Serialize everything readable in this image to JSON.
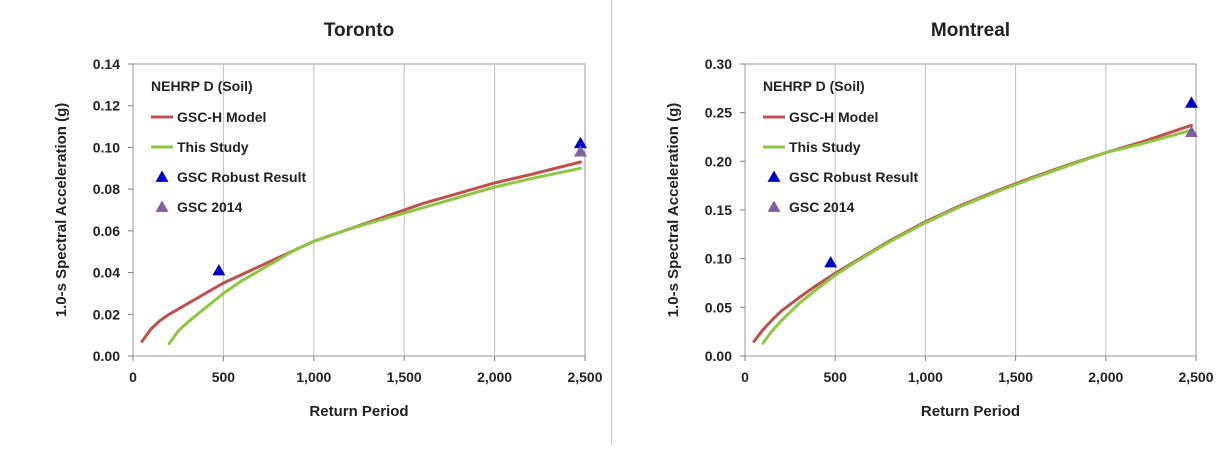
{
  "chart_data": [
    {
      "type": "line",
      "title": "Toronto",
      "xlabel": "Return Period",
      "ylabel": "1.0-s Spectral Acceleration (g)",
      "xlim": [
        0,
        2500
      ],
      "ylim": [
        0,
        0.14
      ],
      "x_ticks": [
        "0",
        "500",
        "1,000",
        "1,500",
        "2,000",
        "2,500"
      ],
      "y_ticks": [
        "0.00",
        "0.02",
        "0.04",
        "0.06",
        "0.08",
        "0.10",
        "0.12",
        "0.14"
      ],
      "grid": "vertical",
      "legend_position": "top-left",
      "legend_title": "NEHRP D (Soil)",
      "series": [
        {
          "name": "GSC-H Model",
          "kind": "line",
          "color": "#c0504d",
          "x": [
            50,
            100,
            150,
            200,
            300,
            400,
            500,
            600,
            700,
            800,
            900,
            1000,
            1200,
            1400,
            1600,
            1800,
            2000,
            2200,
            2475
          ],
          "y": [
            0.007,
            0.013,
            0.017,
            0.02,
            0.025,
            0.03,
            0.035,
            0.039,
            0.043,
            0.047,
            0.051,
            0.055,
            0.061,
            0.067,
            0.073,
            0.078,
            0.083,
            0.087,
            0.093
          ]
        },
        {
          "name": "This Study",
          "kind": "line",
          "color": "#8dc63f",
          "x": [
            200,
            250,
            300,
            400,
            500,
            600,
            700,
            800,
            900,
            1000,
            1200,
            1400,
            1600,
            1800,
            2000,
            2200,
            2475
          ],
          "y": [
            0.006,
            0.012,
            0.016,
            0.023,
            0.03,
            0.036,
            0.041,
            0.046,
            0.051,
            0.055,
            0.061,
            0.066,
            0.071,
            0.076,
            0.081,
            0.085,
            0.09
          ]
        },
        {
          "name": "GSC Robust Result",
          "kind": "marker",
          "color": "#0000cc",
          "x": [
            475,
            2475
          ],
          "y": [
            0.041,
            0.102
          ]
        },
        {
          "name": "GSC 2014",
          "kind": "marker",
          "color": "#7f5fa6",
          "x": [
            2475
          ],
          "y": [
            0.098
          ]
        }
      ]
    },
    {
      "type": "line",
      "title": "Montreal",
      "xlabel": "Return Period",
      "ylabel": "1.0-s Spectral Acceleration (g)",
      "xlim": [
        0,
        2500
      ],
      "ylim": [
        0,
        0.3
      ],
      "x_ticks": [
        "0",
        "500",
        "1,000",
        "1,500",
        "2,000",
        "2,500"
      ],
      "y_ticks": [
        "0.00",
        "0.05",
        "0.10",
        "0.15",
        "0.20",
        "0.25",
        "0.30"
      ],
      "grid": "vertical",
      "legend_position": "top-left",
      "legend_title": "NEHRP D (Soil)",
      "series": [
        {
          "name": "GSC-H Model",
          "kind": "line",
          "color": "#c0504d",
          "x": [
            50,
            100,
            150,
            200,
            300,
            400,
            500,
            600,
            800,
            1000,
            1200,
            1400,
            1600,
            1800,
            2000,
            2200,
            2475
          ],
          "y": [
            0.015,
            0.027,
            0.037,
            0.046,
            0.06,
            0.073,
            0.085,
            0.096,
            0.118,
            0.138,
            0.155,
            0.17,
            0.184,
            0.197,
            0.209,
            0.22,
            0.237
          ]
        },
        {
          "name": "This Study",
          "kind": "line",
          "color": "#8dc63f",
          "x": [
            100,
            150,
            200,
            300,
            400,
            500,
            600,
            800,
            1000,
            1200,
            1400,
            1600,
            1800,
            2000,
            2200,
            2475
          ],
          "y": [
            0.013,
            0.026,
            0.036,
            0.054,
            0.069,
            0.083,
            0.095,
            0.117,
            0.137,
            0.154,
            0.169,
            0.183,
            0.196,
            0.209,
            0.218,
            0.232
          ]
        },
        {
          "name": "GSC Robust Result",
          "kind": "marker",
          "color": "#0000cc",
          "x": [
            475,
            2475
          ],
          "y": [
            0.096,
            0.26
          ]
        },
        {
          "name": "GSC 2014",
          "kind": "marker",
          "color": "#7f5fa6",
          "x": [
            2475
          ],
          "y": [
            0.23
          ]
        }
      ]
    }
  ]
}
